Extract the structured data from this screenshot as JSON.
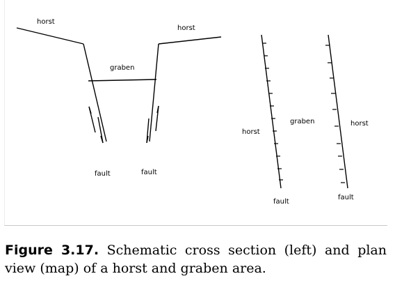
{
  "diagram": {
    "cross_section": {
      "horst_left_label": "horst",
      "horst_right_label": "horst",
      "graben_label": "graben",
      "fault_left_label": "fault",
      "fault_right_label": "fault"
    },
    "plan_view": {
      "horst_left_label": "horst",
      "graben_label": "graben",
      "horst_right_label": "horst",
      "fault_left_label": "fault",
      "fault_right_label": "fault"
    }
  },
  "caption": {
    "figure_label": "Figure 3.17.",
    "text": " Schematic cross section (left) and plan view (map) of a horst and graben area."
  }
}
